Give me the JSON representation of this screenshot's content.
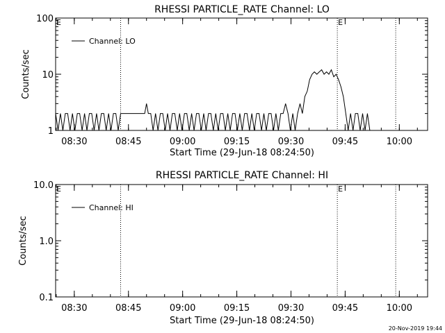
{
  "footer_timestamp": "20-Nov-2019 19:44",
  "chart_data": [
    {
      "type": "line",
      "title": "RHESSI PARTICLE_RATE Channel: LO",
      "xlabel": "Start Time (29-Jun-18 08:24:50)",
      "ylabel": "Counts/sec",
      "x_unit": "minutes",
      "xlim": [
        "08:24:50",
        "10:07:50"
      ],
      "ylim": [
        1,
        100
      ],
      "yscale": "log",
      "x_ticks": [
        "08:30",
        "08:45",
        "09:00",
        "09:15",
        "09:30",
        "09:45",
        "10:00"
      ],
      "y_ticks": [
        {
          "value": 1,
          "label": "1"
        },
        {
          "value": 10,
          "label": "10"
        },
        {
          "value": 100,
          "label": "100"
        }
      ],
      "grid": false,
      "legend": {
        "position": "top-left",
        "entries": [
          "Channel: LO"
        ]
      },
      "markers": [
        {
          "time": "08:42:50",
          "label": ""
        },
        {
          "time": "09:42:50",
          "label": "E"
        },
        {
          "time": "09:59:00",
          "label": ""
        }
      ],
      "corner_label": "E",
      "series": [
        {
          "name": "Channel: LO",
          "x": [
            "08:24:50",
            "08:25:30",
            "08:26:10",
            "08:26:50",
            "08:27:30",
            "08:28:10",
            "08:28:50",
            "08:29:30",
            "08:30:10",
            "08:30:50",
            "08:31:30",
            "08:32:10",
            "08:32:50",
            "08:33:30",
            "08:34:10",
            "08:34:50",
            "08:35:30",
            "08:36:10",
            "08:36:50",
            "08:37:30",
            "08:38:10",
            "08:38:50",
            "08:39:30",
            "08:40:10",
            "08:40:50",
            "08:41:30",
            "08:42:10",
            "08:42:50",
            "08:43:30",
            "08:49:30",
            "08:50:00",
            "08:50:30",
            "08:51:10",
            "08:51:50",
            "08:52:30",
            "08:53:10",
            "08:53:50",
            "08:54:30",
            "08:55:10",
            "08:55:50",
            "08:56:30",
            "08:57:10",
            "08:57:50",
            "08:58:30",
            "08:59:10",
            "08:59:50",
            "09:00:30",
            "09:01:10",
            "09:01:50",
            "09:02:30",
            "09:03:10",
            "09:03:50",
            "09:04:30",
            "09:05:10",
            "09:05:50",
            "09:06:30",
            "09:07:10",
            "09:07:50",
            "09:08:30",
            "09:09:10",
            "09:09:50",
            "09:10:30",
            "09:11:10",
            "09:11:50",
            "09:12:30",
            "09:13:10",
            "09:13:50",
            "09:14:30",
            "09:15:10",
            "09:15:50",
            "09:16:30",
            "09:17:10",
            "09:17:50",
            "09:18:30",
            "09:19:10",
            "09:19:50",
            "09:20:30",
            "09:21:10",
            "09:21:50",
            "09:22:30",
            "09:23:10",
            "09:23:50",
            "09:24:30",
            "09:25:10",
            "09:25:50",
            "09:26:30",
            "09:27:10",
            "09:27:50",
            "09:28:30",
            "09:29:10",
            "09:29:50",
            "09:30:30",
            "09:31:10",
            "09:31:50",
            "09:32:30",
            "09:33:10",
            "09:33:50",
            "09:34:30",
            "09:35:10",
            "09:35:50",
            "09:36:30",
            "09:37:10",
            "09:37:50",
            "09:38:30",
            "09:39:10",
            "09:39:50",
            "09:40:30",
            "09:41:10",
            "09:41:50",
            "09:42:30",
            "09:43:10",
            "09:43:50",
            "09:44:30",
            "09:45:10",
            "09:45:50",
            "09:46:30",
            "09:47:10",
            "09:47:50",
            "09:48:30",
            "09:49:10",
            "09:49:50",
            "09:50:30",
            "09:51:10",
            "09:51:50",
            "09:52:30"
          ],
          "values": [
            2,
            1,
            2,
            1,
            2,
            2,
            1,
            2,
            1,
            2,
            2,
            1,
            2,
            1,
            2,
            2,
            1,
            2,
            1,
            2,
            2,
            1,
            2,
            1,
            2,
            2,
            1,
            2,
            2,
            2,
            3,
            2,
            2,
            1,
            2,
            1,
            2,
            2,
            1,
            2,
            1,
            2,
            2,
            1,
            2,
            1,
            2,
            2,
            1,
            2,
            1,
            2,
            2,
            1,
            2,
            1,
            2,
            2,
            1,
            2,
            1,
            2,
            2,
            1,
            2,
            1,
            2,
            2,
            1,
            2,
            1,
            2,
            2,
            1,
            2,
            1,
            2,
            2,
            1,
            2,
            1,
            2,
            2,
            1,
            2,
            1,
            2,
            2,
            3,
            2,
            1,
            2,
            1,
            2,
            3,
            2,
            4,
            5,
            8,
            10,
            11,
            10,
            11,
            12,
            10,
            11,
            10,
            12,
            9,
            10,
            8,
            6,
            4,
            2,
            1,
            2,
            1,
            2,
            2,
            1,
            2,
            1,
            2,
            1,
            1
          ]
        }
      ]
    },
    {
      "type": "line",
      "title": "RHESSI PARTICLE_RATE Channel: HI",
      "xlabel": "Start Time (29-Jun-18 08:24:50)",
      "ylabel": "Counts/sec",
      "xlim": [
        "08:24:50",
        "10:07:50"
      ],
      "ylim": [
        0.1,
        10
      ],
      "yscale": "log",
      "x_ticks": [
        "08:30",
        "08:45",
        "09:00",
        "09:15",
        "09:30",
        "09:45",
        "10:00"
      ],
      "y_ticks": [
        {
          "value": 0.1,
          "label": "0.1"
        },
        {
          "value": 1,
          "label": "1.0"
        },
        {
          "value": 10,
          "label": "10.0"
        }
      ],
      "grid": false,
      "legend": {
        "position": "top-left",
        "entries": [
          "Channel: HI"
        ]
      },
      "markers": [
        {
          "time": "08:42:50",
          "label": ""
        },
        {
          "time": "09:42:50",
          "label": "E"
        },
        {
          "time": "09:59:00",
          "label": ""
        }
      ],
      "corner_label": "E",
      "series": [
        {
          "name": "Channel: HI",
          "x": [],
          "values": []
        }
      ]
    }
  ]
}
